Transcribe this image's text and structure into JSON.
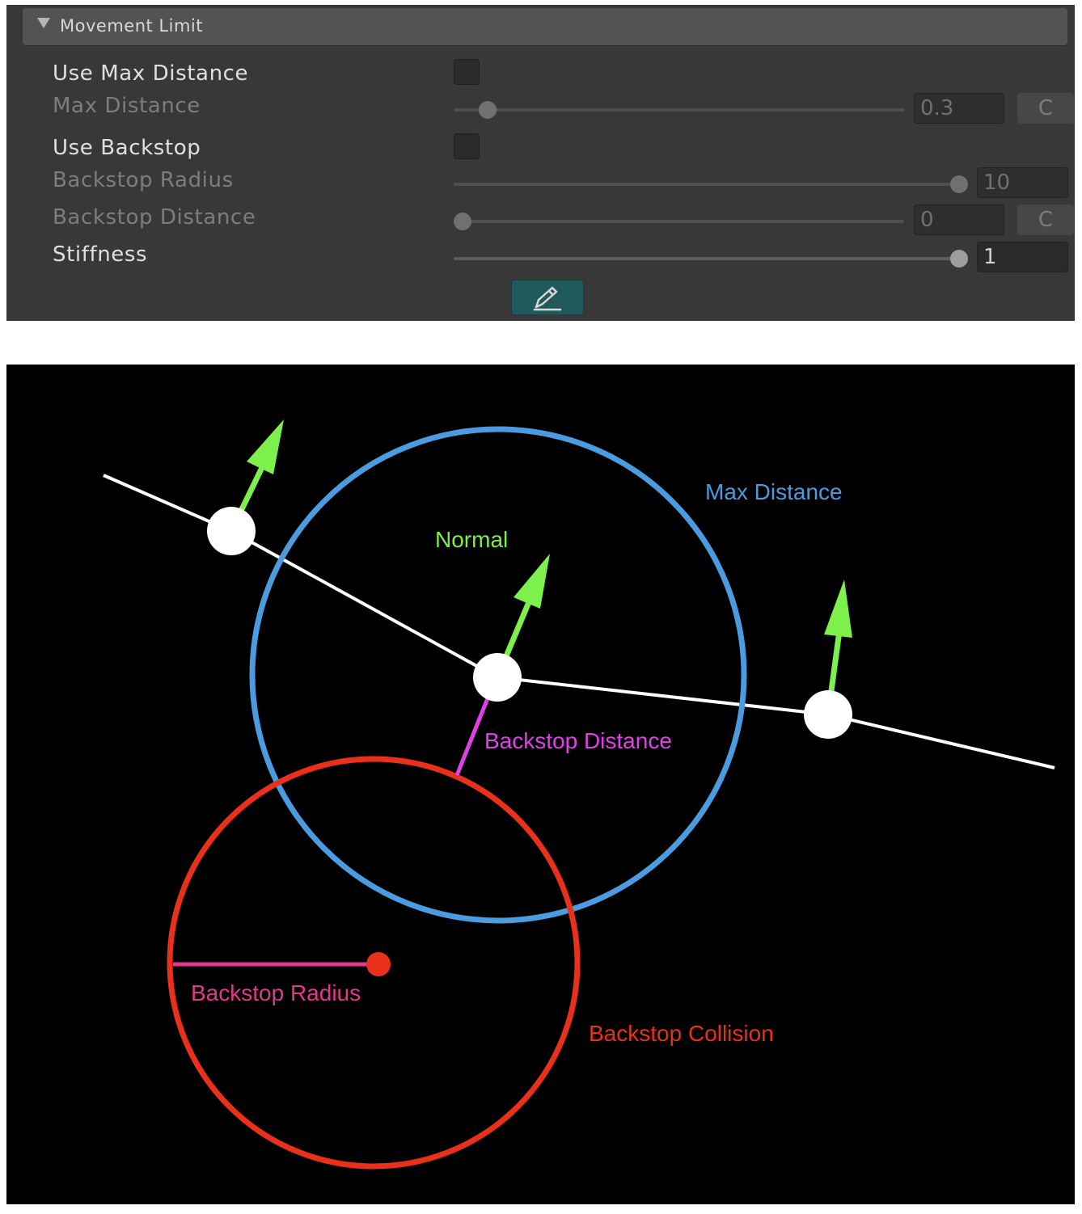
{
  "inspector": {
    "section_title": "Movement Limit",
    "rows": [
      {
        "label": "Use Max Distance",
        "control": "checkbox",
        "checked": false,
        "enabled": true
      },
      {
        "label": "Max Distance",
        "control": "slider",
        "value": "0.3",
        "fraction": 0.06,
        "curve_button": "C",
        "enabled": false
      },
      {
        "label": "Use Backstop",
        "control": "checkbox",
        "checked": false,
        "enabled": true
      },
      {
        "label": "Backstop Radius",
        "control": "slider",
        "value": "10",
        "fraction": 1.0,
        "enabled": false
      },
      {
        "label": "Backstop Distance",
        "control": "slider",
        "value": "0",
        "fraction": 0.0,
        "curve_button": "C",
        "enabled": false
      },
      {
        "label": "Stiffness",
        "control": "slider",
        "value": "1",
        "fraction": 1.0,
        "enabled": true
      }
    ],
    "edit_button_icon": "pencil-icon"
  },
  "diagram": {
    "labels": {
      "max_distance": "Max Distance",
      "normal": "Normal",
      "backstop_distance": "Backstop Distance",
      "backstop_radius": "Backstop Radius",
      "backstop_collision": "Backstop Collision"
    },
    "colors": {
      "max_distance": "#4a9be0",
      "normal": "#7df04c",
      "backstop_distance": "#e040e8",
      "backstop_radius": "#e0388a",
      "backstop_collision": "#e8301a",
      "bone_line": "#ffffff"
    }
  }
}
